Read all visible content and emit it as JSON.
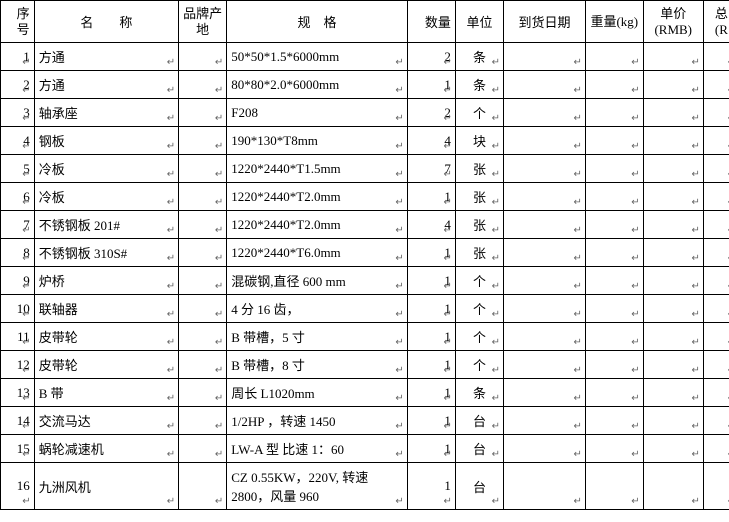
{
  "headers": {
    "seq": "序号",
    "name": "名　　称",
    "brand": "品牌产地",
    "spec": "规　格",
    "qty": "数量",
    "unit": "单位",
    "date": "到货日期",
    "weight": "重量(kg)",
    "price": "单价(RMB)",
    "total": "总 (R"
  },
  "rows": [
    {
      "seq": "1",
      "name": "方通",
      "brand": "",
      "spec": "50*50*1.5*6000mm",
      "qty": "2",
      "unit": "条",
      "date": "",
      "weight": "",
      "price": "",
      "total": ""
    },
    {
      "seq": "2",
      "name": "方通",
      "brand": "",
      "spec": "80*80*2.0*6000mm",
      "qty": "1",
      "unit": "条",
      "date": "",
      "weight": "",
      "price": "",
      "total": ""
    },
    {
      "seq": "3",
      "name": "轴承座",
      "brand": "",
      "spec": "F208",
      "qty": "2",
      "unit": "个",
      "date": "",
      "weight": "",
      "price": "",
      "total": ""
    },
    {
      "seq": "4",
      "name": "钢板",
      "brand": "",
      "spec": "190*130*T8mm",
      "qty": "4",
      "unit": "块",
      "date": "",
      "weight": "",
      "price": "",
      "total": ""
    },
    {
      "seq": "5",
      "name": "冷板",
      "brand": "",
      "spec": "1220*2440*T1.5mm",
      "qty": "7",
      "unit": "张",
      "date": "",
      "weight": "",
      "price": "",
      "total": ""
    },
    {
      "seq": "6",
      "name": "冷板",
      "brand": "",
      "spec": "1220*2440*T2.0mm",
      "qty": "1",
      "unit": "张",
      "date": "",
      "weight": "",
      "price": "",
      "total": ""
    },
    {
      "seq": "7",
      "name": "不锈钢板 201#",
      "brand": "",
      "spec": "1220*2440*T2.0mm",
      "qty": "4",
      "unit": "张",
      "date": "",
      "weight": "",
      "price": "",
      "total": ""
    },
    {
      "seq": "8",
      "name": "不锈钢板 310S#",
      "brand": "",
      "spec": "1220*2440*T6.0mm",
      "qty": "1",
      "unit": "张",
      "date": "",
      "weight": "",
      "price": "",
      "total": ""
    },
    {
      "seq": "9",
      "name": "炉桥",
      "brand": "",
      "spec": "混碳钢,直径 600 mm",
      "qty": "1",
      "unit": "个",
      "date": "",
      "weight": "",
      "price": "",
      "total": ""
    },
    {
      "seq": "10",
      "name": "联轴器",
      "brand": "",
      "spec": "4 分 16 齿，",
      "qty": "1",
      "unit": "个",
      "date": "",
      "weight": "",
      "price": "",
      "total": ""
    },
    {
      "seq": "11",
      "name": "皮带轮",
      "brand": "",
      "spec": "B 带槽，5 寸",
      "qty": "1",
      "unit": "个",
      "date": "",
      "weight": "",
      "price": "",
      "total": ""
    },
    {
      "seq": "12",
      "name": "皮带轮",
      "brand": "",
      "spec": "B 带槽，8 寸",
      "qty": "1",
      "unit": "个",
      "date": "",
      "weight": "",
      "price": "",
      "total": ""
    },
    {
      "seq": "13",
      "name": "B 带",
      "brand": "",
      "spec": "周长 L1020mm",
      "qty": "1",
      "unit": "条",
      "date": "",
      "weight": "",
      "price": "",
      "total": ""
    },
    {
      "seq": "14",
      "name": "交流马达",
      "brand": "",
      "spec": "1/2HP ，转速 1450",
      "qty": "1",
      "unit": "台",
      "date": "",
      "weight": "",
      "price": "",
      "total": ""
    },
    {
      "seq": "15",
      "name": "蜗轮减速机",
      "brand": "",
      "spec": "LW-A 型  比速 1：60",
      "qty": "1",
      "unit": "台",
      "date": "",
      "weight": "",
      "price": "",
      "total": ""
    },
    {
      "seq": "16",
      "name": "九洲风机",
      "brand": "",
      "spec": "CZ 0.55KW，220V, 转速 2800，风量 960",
      "qty": "1",
      "unit": "台",
      "date": "",
      "weight": "",
      "price": "",
      "total": ""
    }
  ],
  "markerGlyph": "↵",
  "style": {
    "fontFamily": "SimSun",
    "fontSizePx": 13,
    "borderColor": "#000000",
    "backgroundColor": "#ffffff",
    "markerColor": "#666666"
  },
  "columns": [
    {
      "key": "seq",
      "widthPx": 28,
      "align": "right"
    },
    {
      "key": "name",
      "widthPx": 120,
      "align": "left"
    },
    {
      "key": "brand",
      "widthPx": 40,
      "align": "center"
    },
    {
      "key": "spec",
      "widthPx": 150,
      "align": "left"
    },
    {
      "key": "qty",
      "widthPx": 40,
      "align": "right"
    },
    {
      "key": "unit",
      "widthPx": 40,
      "align": "center"
    },
    {
      "key": "date",
      "widthPx": 68,
      "align": "left"
    },
    {
      "key": "weight",
      "widthPx": 48,
      "align": "left"
    },
    {
      "key": "price",
      "widthPx": 50,
      "align": "center"
    },
    {
      "key": "total",
      "widthPx": 30,
      "align": "center"
    }
  ]
}
